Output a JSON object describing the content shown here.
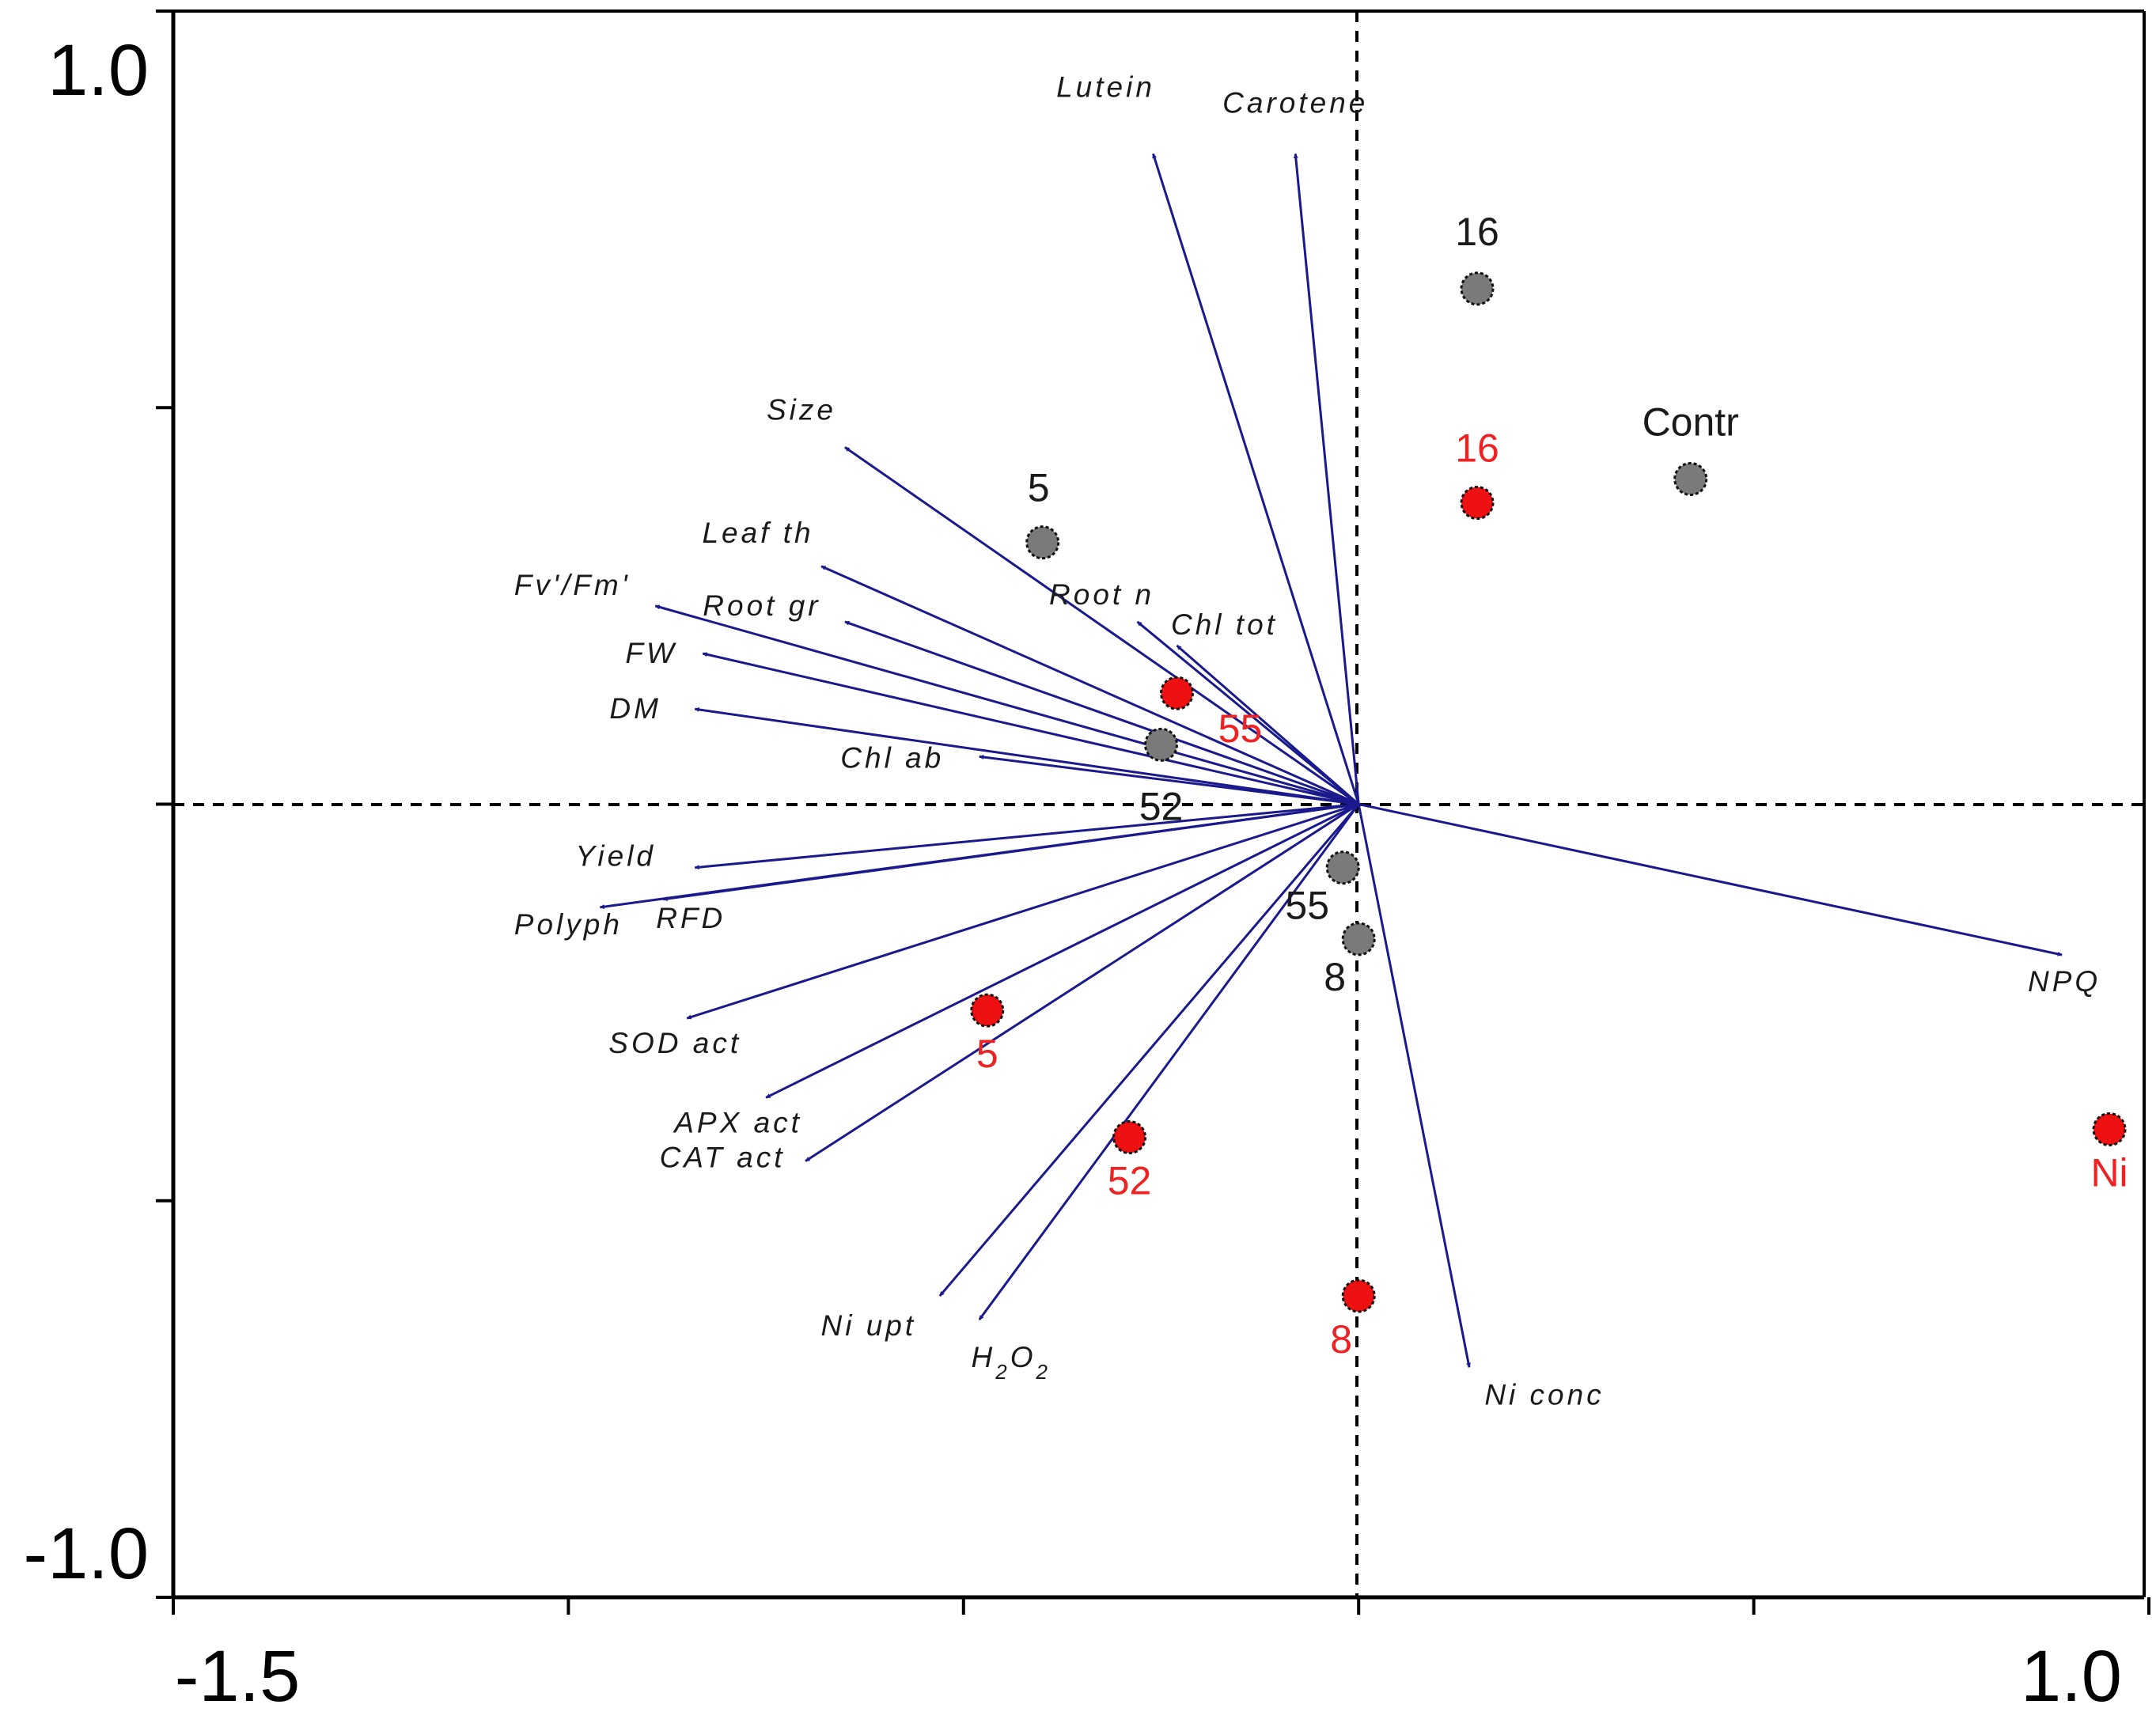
{
  "chart_data": {
    "type": "scatter",
    "subtype": "pca-biplot",
    "title": "",
    "xlabel": "",
    "ylabel": "",
    "xlim": [
      -1.5,
      1.0
    ],
    "ylim": [
      -1.0,
      1.0
    ],
    "x_tick_labels": [
      "-1.5",
      "1.0"
    ],
    "y_tick_labels": [
      "1.0",
      "-1.0"
    ],
    "x_ticks": [
      -1.5,
      -1.0,
      -0.5,
      0.0,
      0.5,
      1.0
    ],
    "y_ticks": [
      -1.0,
      -0.5,
      0.0,
      0.5,
      1.0
    ],
    "colors": {
      "arrow": "#1a1a8c",
      "grey_point": "#7a7a7a",
      "red_point": "#ee1111",
      "grey_label": "#1a1a1a",
      "red_label": "#ee2222"
    },
    "vectors": [
      {
        "name": "Lutein",
        "x": -0.26,
        "y": 0.82
      },
      {
        "name": "Carotene",
        "x": -0.08,
        "y": 0.82
      },
      {
        "name": "Size",
        "x": -0.65,
        "y": 0.45
      },
      {
        "name": "Leaf th",
        "x": -0.68,
        "y": 0.3
      },
      {
        "name": "Root n",
        "x": -0.28,
        "y": 0.23
      },
      {
        "name": "Chl tot",
        "x": -0.23,
        "y": 0.2
      },
      {
        "name": "Fv'/Fm'",
        "x": -0.89,
        "y": 0.25
      },
      {
        "name": "Root gr",
        "x": -0.65,
        "y": 0.23
      },
      {
        "name": "FW",
        "x": -0.83,
        "y": 0.19
      },
      {
        "name": "DM",
        "x": -0.84,
        "y": 0.12
      },
      {
        "name": "Chl ab",
        "x": -0.48,
        "y": 0.06
      },
      {
        "name": "Yield",
        "x": -0.84,
        "y": -0.08
      },
      {
        "name": "RFD",
        "x": -0.88,
        "y": -0.12
      },
      {
        "name": "Polyph",
        "x": -0.96,
        "y": -0.13
      },
      {
        "name": "SOD act",
        "x": -0.85,
        "y": -0.27
      },
      {
        "name": "APX act",
        "x": -0.75,
        "y": -0.37
      },
      {
        "name": "CAT act",
        "x": -0.7,
        "y": -0.45
      },
      {
        "name": "Ni upt",
        "x": -0.53,
        "y": -0.62
      },
      {
        "name": "H2O2",
        "x": -0.48,
        "y": -0.65
      },
      {
        "name": "Ni conc",
        "x": 0.14,
        "y": -0.71
      },
      {
        "name": "NPQ",
        "x": 0.89,
        "y": -0.19
      }
    ],
    "series": [
      {
        "name": "grey",
        "points": [
          {
            "label": "16",
            "x": 0.15,
            "y": 0.65
          },
          {
            "label": "Contr",
            "x": 0.42,
            "y": 0.41
          },
          {
            "label": "5",
            "x": -0.4,
            "y": 0.33
          },
          {
            "label": "52",
            "x": -0.25,
            "y": 0.075
          },
          {
            "label": "55",
            "x": -0.02,
            "y": -0.08
          },
          {
            "label": "8",
            "x": 0.0,
            "y": -0.17
          }
        ]
      },
      {
        "name": "red",
        "points": [
          {
            "label": "16",
            "x": 0.15,
            "y": 0.38
          },
          {
            "label": "55",
            "x": -0.23,
            "y": 0.14
          },
          {
            "label": "5",
            "x": -0.47,
            "y": -0.26
          },
          {
            "label": "52",
            "x": -0.29,
            "y": -0.42
          },
          {
            "label": "8",
            "x": 0.0,
            "y": -0.62
          },
          {
            "label": "Ni",
            "x": 0.95,
            "y": -0.41
          }
        ]
      }
    ]
  }
}
